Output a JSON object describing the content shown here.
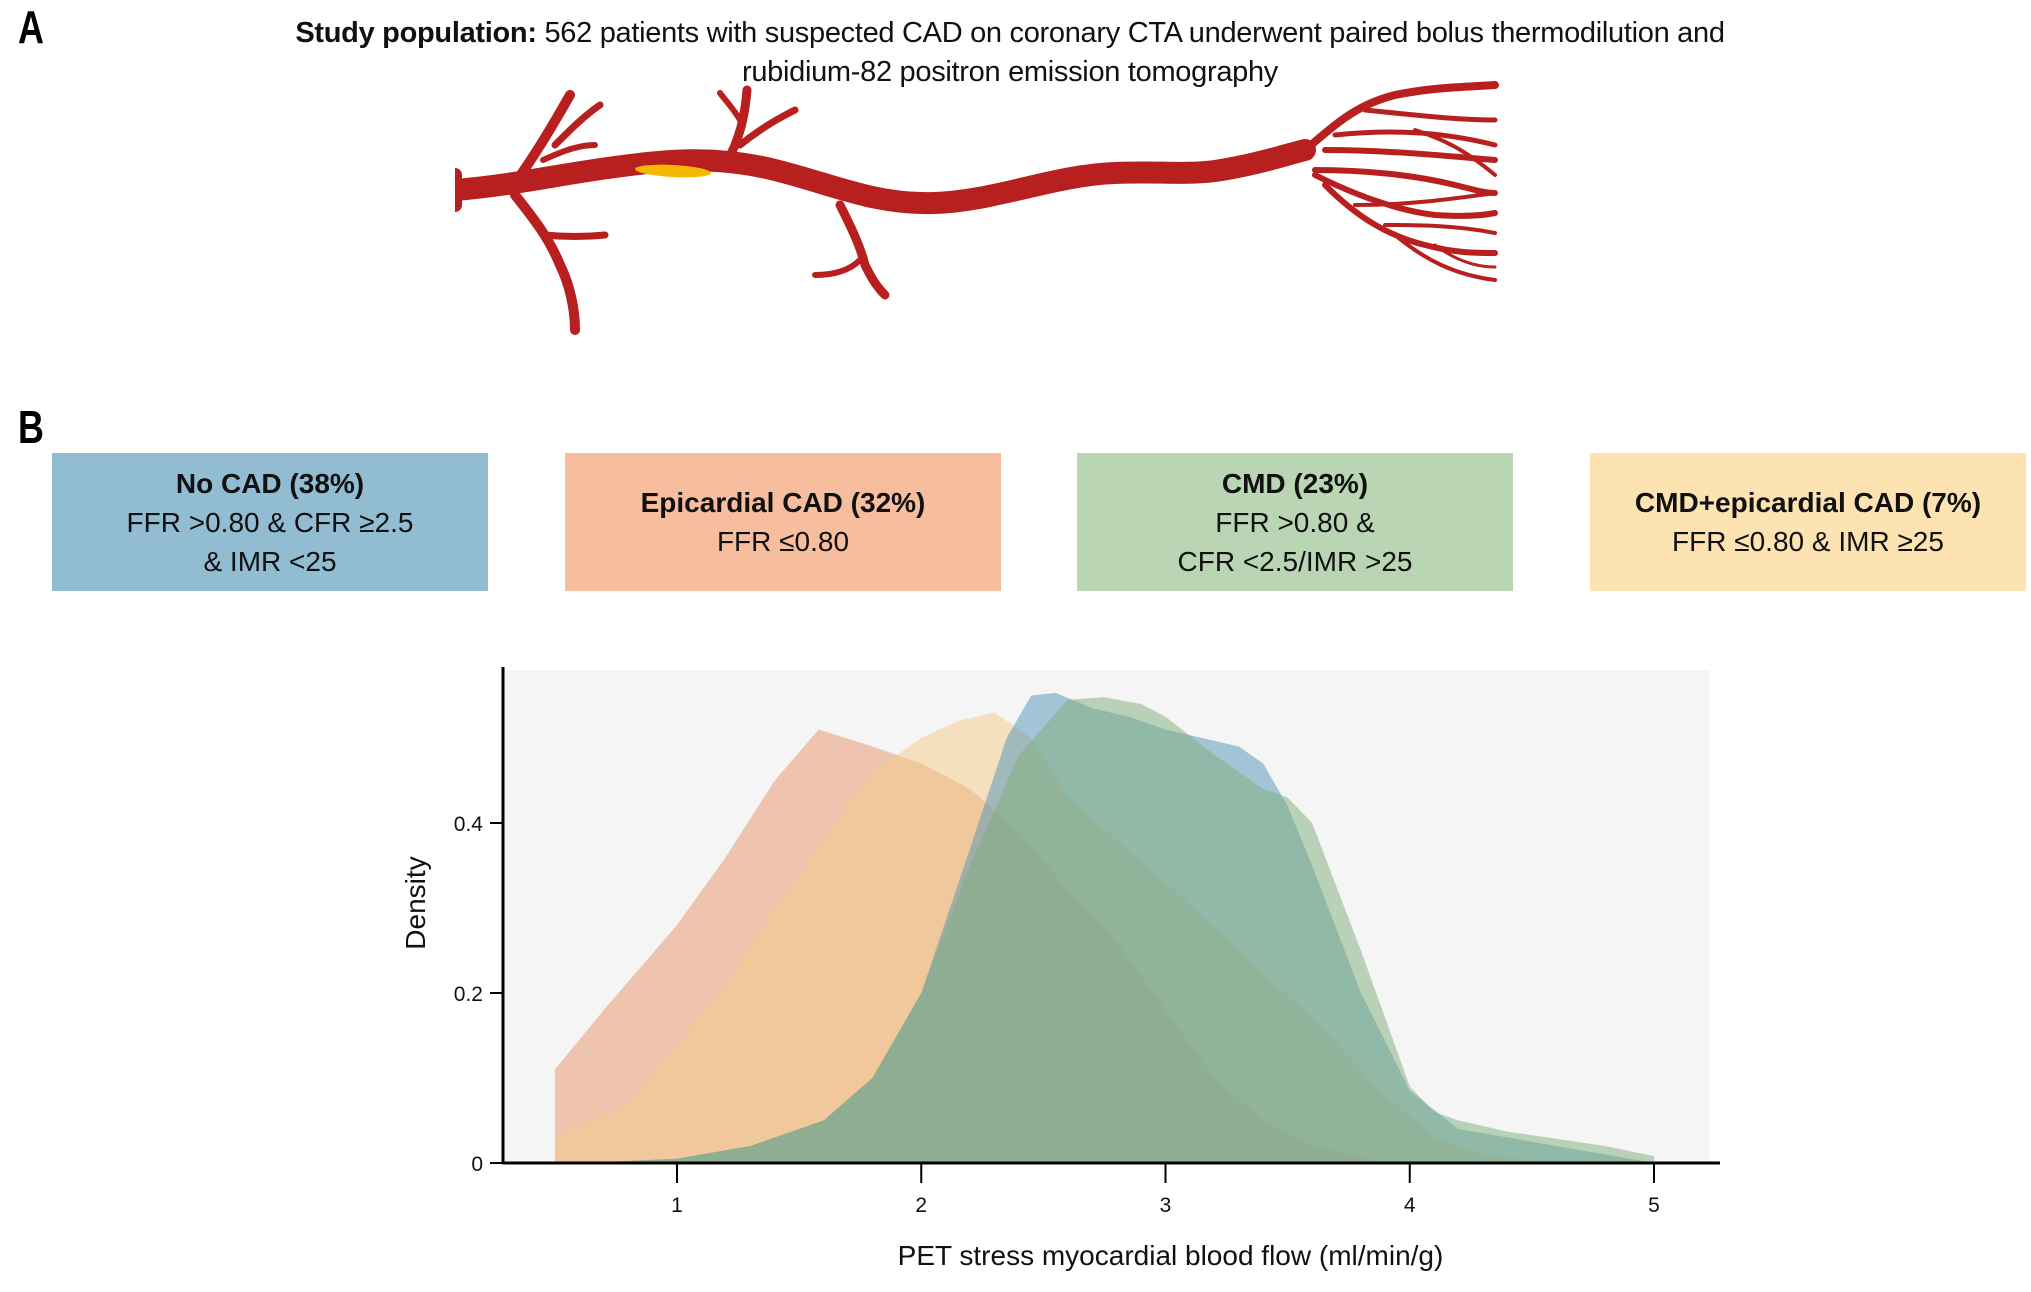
{
  "panels": {
    "a": "A",
    "b": "B"
  },
  "study": {
    "label": "Study population:",
    "text": " 562 patients with suspected CAD on coronary CTA underwent paired bolus thermodilution and rubidium-82 positron emission tomography"
  },
  "illustration": {
    "artery_color": "#b8201f",
    "plaque_color": "#f5b800"
  },
  "groups": [
    {
      "title": "No CAD (38%)",
      "lines": [
        "FFR >0.80 & CFR ≥2.5",
        "& IMR <25"
      ],
      "color": "#91bcd1"
    },
    {
      "title": "Epicardial CAD (32%)",
      "lines": [
        "FFR ≤0.80"
      ],
      "color": "#f6bd9e"
    },
    {
      "title": "CMD (23%)",
      "lines": [
        "FFR >0.80 &",
        "CFR <2.5/IMR >25"
      ],
      "color": "#b9d5b4"
    },
    {
      "title": "CMD+epicardial CAD (7%)",
      "lines": [
        "FFR ≤0.80 & IMR ≥25"
      ],
      "color": "#fde2b2"
    }
  ],
  "chart_data": {
    "type": "area",
    "title": "",
    "xlabel": "PET stress myocardial blood flow (ml/min/g)",
    "ylabel": "Density",
    "xlim": [
      0.0,
      5.23
    ],
    "ylim": [
      0,
      0.575
    ],
    "xticks": [
      1,
      2,
      3,
      4,
      5
    ],
    "xtick_labels": [
      "1",
      "2",
      "3",
      "4",
      "5"
    ],
    "yticks": [
      0,
      0.2,
      0.4
    ],
    "ytick_labels": [
      "0",
      "0.2",
      "0.4"
    ],
    "grid": false,
    "background": "#f5f5f5",
    "legend": "none (colors match group boxes above)",
    "series": [
      {
        "name": "Epicardial CAD",
        "color": "#e8946a",
        "opacity": 0.5,
        "x": [
          0.5,
          0.5,
          0.7,
          1.0,
          1.2,
          1.4,
          1.58,
          1.8,
          2.0,
          2.2,
          2.4,
          2.6,
          2.8,
          3.0,
          3.2,
          3.4,
          3.6,
          3.9
        ],
        "y": [
          0.0,
          0.11,
          0.18,
          0.28,
          0.36,
          0.45,
          0.51,
          0.49,
          0.47,
          0.44,
          0.39,
          0.32,
          0.26,
          0.18,
          0.1,
          0.05,
          0.02,
          0.0
        ]
      },
      {
        "name": "CMD+epicardial CAD",
        "color": "#f4c98a",
        "opacity": 0.5,
        "x": [
          0.5,
          0.5,
          0.8,
          1.0,
          1.2,
          1.4,
          1.6,
          1.8,
          2.0,
          2.15,
          2.3,
          2.45,
          2.6,
          2.8,
          3.0,
          3.3,
          3.6,
          3.9,
          4.1,
          4.3,
          4.6
        ],
        "y": [
          0.0,
          0.03,
          0.07,
          0.14,
          0.21,
          0.3,
          0.38,
          0.46,
          0.5,
          0.52,
          0.53,
          0.5,
          0.43,
          0.38,
          0.33,
          0.25,
          0.17,
          0.08,
          0.03,
          0.01,
          0.0
        ]
      },
      {
        "name": "No CAD",
        "color": "#4f93b8",
        "opacity": 0.5,
        "x": [
          0.6,
          1.0,
          1.3,
          1.6,
          1.8,
          2.0,
          2.2,
          2.35,
          2.45,
          2.55,
          2.7,
          2.85,
          3.0,
          3.15,
          3.3,
          3.4,
          3.5,
          3.6,
          3.8,
          4.0,
          4.2,
          4.6,
          5.0
        ],
        "y": [
          0.0,
          0.005,
          0.02,
          0.05,
          0.1,
          0.2,
          0.37,
          0.5,
          0.55,
          0.553,
          0.535,
          0.525,
          0.51,
          0.5,
          0.49,
          0.47,
          0.42,
          0.35,
          0.2,
          0.085,
          0.04,
          0.02,
          0.0
        ]
      },
      {
        "name": "CMD",
        "color": "#7eae78",
        "opacity": 0.5,
        "x": [
          0.6,
          1.0,
          1.3,
          1.6,
          1.8,
          2.0,
          2.2,
          2.4,
          2.6,
          2.75,
          2.9,
          3.0,
          3.2,
          3.4,
          3.5,
          3.6,
          3.8,
          4.0,
          4.1,
          4.2,
          4.4,
          4.8,
          5.0,
          5.0
        ],
        "y": [
          0.0,
          0.005,
          0.02,
          0.05,
          0.1,
          0.2,
          0.35,
          0.48,
          0.545,
          0.548,
          0.54,
          0.525,
          0.48,
          0.44,
          0.43,
          0.4,
          0.25,
          0.09,
          0.06,
          0.05,
          0.037,
          0.02,
          0.008,
          0.0
        ]
      }
    ]
  }
}
